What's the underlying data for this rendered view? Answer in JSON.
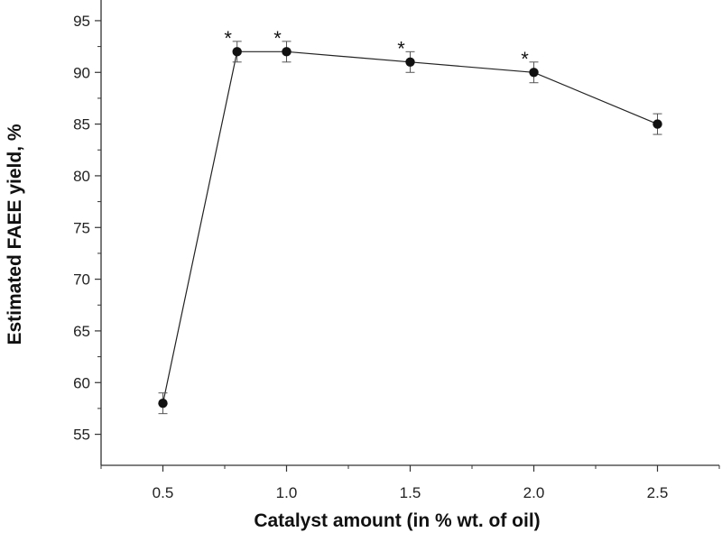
{
  "chart_data": {
    "type": "line",
    "title": "",
    "xlabel": "Catalyst amount (in % wt. of oil)",
    "ylabel": "Estimated FAEE yield, %",
    "xlim": [
      0.25,
      2.75
    ],
    "ylim": [
      52,
      97
    ],
    "x_ticks": [
      0.5,
      1.0,
      1.5,
      2.0,
      2.5
    ],
    "x_tick_labels": [
      "0.5",
      "1.0",
      "1.5",
      "2.0",
      "2.5"
    ],
    "y_ticks": [
      55,
      60,
      65,
      70,
      75,
      80,
      85,
      90,
      95
    ],
    "y_tick_labels": [
      "55",
      "60",
      "65",
      "70",
      "75",
      "80",
      "85",
      "90",
      "95"
    ],
    "grid": false,
    "legend": "none",
    "series": [
      {
        "x": [
          0.5,
          0.8,
          1.0,
          1.5,
          2.0,
          2.5
        ],
        "y": [
          58,
          92,
          92,
          91,
          90,
          85
        ],
        "error": [
          1,
          1,
          1,
          1,
          1,
          1
        ],
        "annotations": [
          "",
          "*",
          "*",
          "*",
          "*",
          ""
        ]
      }
    ],
    "colors": {
      "line": "#222222",
      "marker": "#111111",
      "axis": "#333333"
    }
  }
}
